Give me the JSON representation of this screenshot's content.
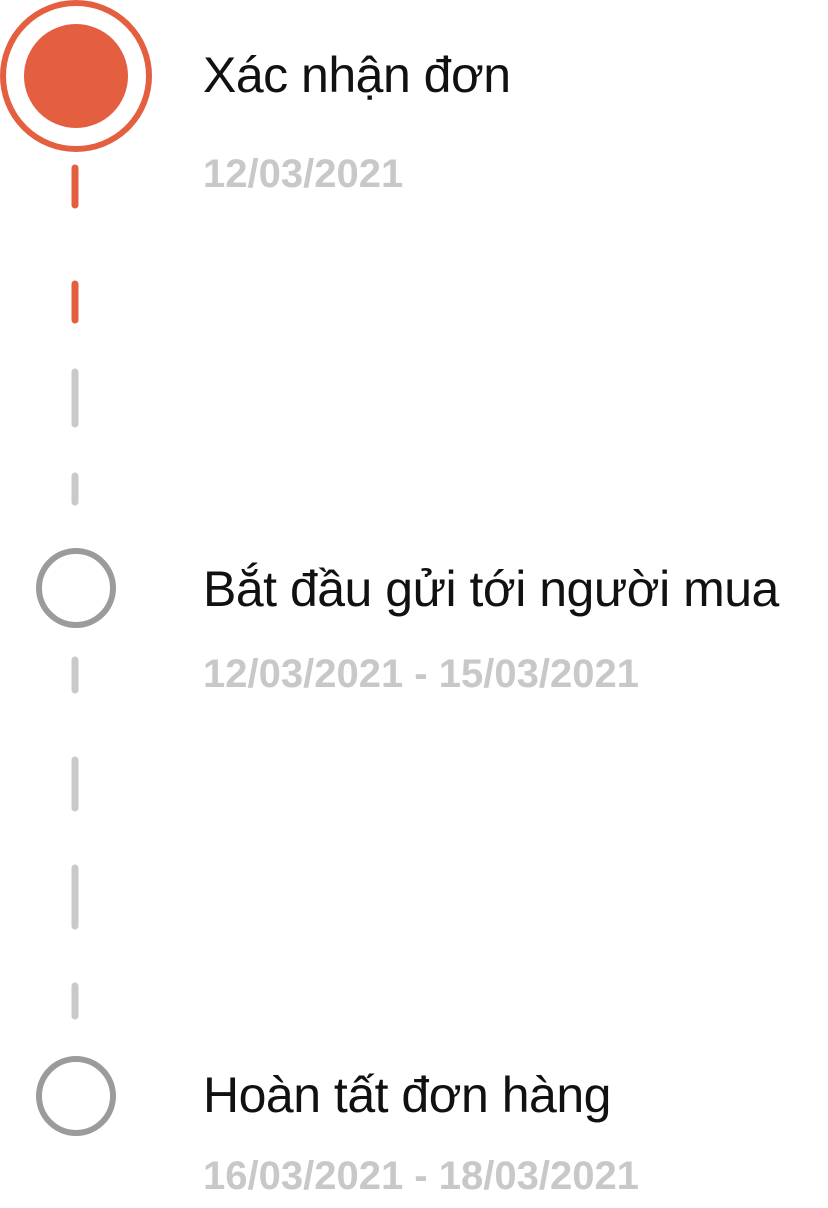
{
  "colors": {
    "accent": "#E45F3F",
    "pending": "#9B9B9B",
    "dash_pending": "#C9C9C9",
    "muted": "#C8C8C8"
  },
  "steps": [
    {
      "title": "Xác nhận đơn",
      "date": "12/03/2021",
      "state": "active"
    },
    {
      "title": "Bắt đầu gửi tới người mua",
      "date": "12/03/2021 - 15/03/2021",
      "state": "pending"
    },
    {
      "title": "Hoàn tất đơn hàng",
      "date": "16/03/2021 - 18/03/2021",
      "state": "pending"
    }
  ]
}
